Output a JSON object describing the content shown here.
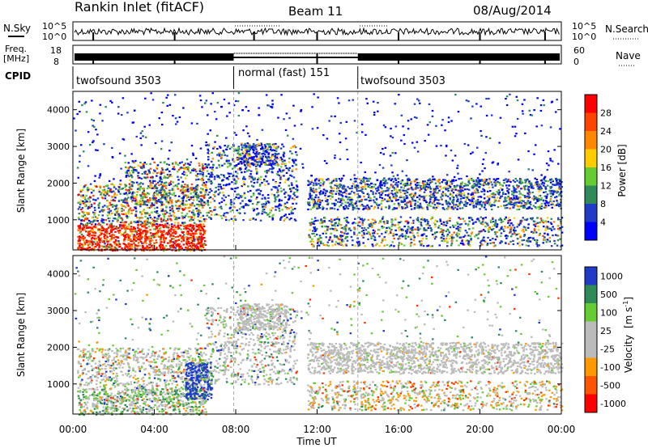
{
  "header": {
    "title": "Rankin Inlet (fitACF)",
    "beam": "Beam 11",
    "date": "08/Aug/2014"
  },
  "nsky_panel": {
    "left_label": "N.Sky",
    "right_label": "N.Search",
    "left_ticks": [
      "10^5",
      "10^0"
    ],
    "right_ticks": [
      "10^5",
      "10^0"
    ]
  },
  "freq_panel": {
    "left_label_1": "Freq.",
    "left_label_2": "[MHz]",
    "right_label": "Nave",
    "left_ticks": [
      "18",
      "8"
    ],
    "right_ticks": [
      "60",
      "0"
    ]
  },
  "cpid": {
    "label": "CPID",
    "modes": [
      {
        "name": "twofsound 3503",
        "start_h": 0,
        "end_h": 7.9
      },
      {
        "name": "normal (fast) 151",
        "start_h": 7.9,
        "end_h": 14
      },
      {
        "name": "twofsound 3503",
        "start_h": 14,
        "end_h": 24
      }
    ]
  },
  "colors": {
    "power": [
      "#0000ff",
      "#1e3cc8",
      "#2e8b57",
      "#66cc33",
      "#ffcc00",
      "#ff8800",
      "#ff4400",
      "#ff0000"
    ],
    "velocity": [
      "#1e3cc8",
      "#2e8b57",
      "#66cc33",
      "#bbbbbb",
      "#bbbbbb",
      "#ff9900",
      "#ff5500",
      "#ff0000"
    ]
  },
  "chart_data": [
    {
      "type": "heatmap",
      "name": "power",
      "ylabel": "Slant Range [km]",
      "colorbar_label": "Power [dB]",
      "colorbar_ticks": [
        "4",
        "8",
        "12",
        "16",
        "20",
        "24",
        "28"
      ],
      "y_ticks": [
        "1000",
        "2000",
        "3000",
        "4000"
      ],
      "ylim": [
        180,
        4500
      ],
      "xlim_hours": [
        0,
        24
      ]
    },
    {
      "type": "heatmap",
      "name": "velocity",
      "ylabel": "Slant Range [km]",
      "colorbar_label_main": "Velocity",
      "colorbar_label_unit": "[m s",
      "colorbar_label_exp": "-1",
      "colorbar_label_close": "]",
      "colorbar_ticks": [
        "1000",
        "500",
        "100",
        "25",
        "-25",
        "-100",
        "-500",
        "-1000"
      ],
      "y_ticks": [
        "1000",
        "2000",
        "3000",
        "4000"
      ],
      "ylim": [
        180,
        4500
      ],
      "xlim_hours": [
        0,
        24
      ],
      "x_ticks": [
        "00:00",
        "04:00",
        "08:00",
        "12:00",
        "16:00",
        "20:00",
        "00:00"
      ],
      "xlabel": "Time UT"
    }
  ]
}
